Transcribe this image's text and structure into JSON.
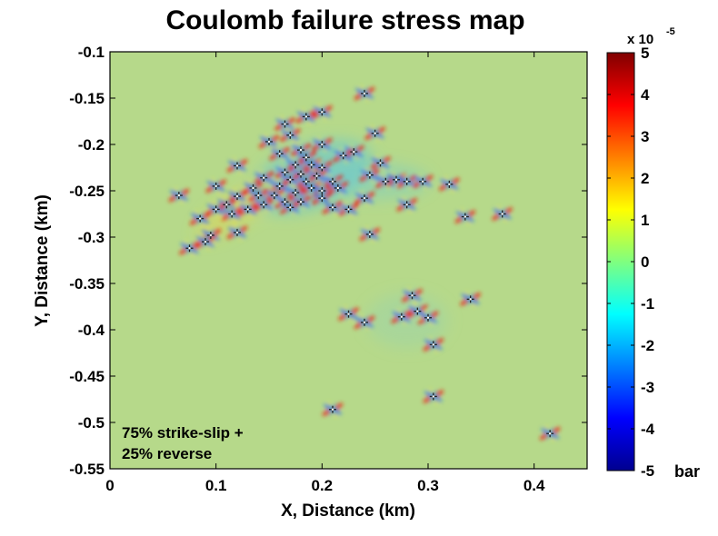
{
  "chart_data": {
    "type": "heatmap",
    "title": "Coulomb failure stress map",
    "xlabel": "X, Distance (km)",
    "ylabel": "Y, Distance (km)",
    "xlim": [
      0,
      0.45
    ],
    "ylim": [
      -0.55,
      -0.1
    ],
    "x_ticks": [
      "0",
      "0.1",
      "0.2",
      "0.3",
      "0.4"
    ],
    "x_tick_values": [
      0,
      0.1,
      0.2,
      0.3,
      0.4
    ],
    "y_ticks": [
      "-0.1",
      "-0.15",
      "-0.2",
      "-0.25",
      "-0.3",
      "-0.35",
      "-0.4",
      "-0.45",
      "-0.5",
      "-0.55"
    ],
    "y_tick_values": [
      -0.1,
      -0.15,
      -0.2,
      -0.25,
      -0.3,
      -0.35,
      -0.4,
      -0.45,
      -0.5,
      -0.55
    ],
    "colorbar": {
      "min": -5,
      "max": 5,
      "ticks": [
        "5",
        "4",
        "3",
        "2",
        "1",
        "0",
        "-1",
        "-2",
        "-3",
        "-4",
        "-5"
      ],
      "tick_values": [
        5,
        4,
        3,
        2,
        1,
        0,
        -1,
        -2,
        -3,
        -4,
        -5
      ],
      "scale_label": "x 10",
      "scale_exponent": "-5",
      "unit": "bar",
      "colormap": "jet"
    },
    "annotation": [
      "75% strike-slip +",
      "25% reverse"
    ],
    "background_color": "#b6d98a",
    "events": [
      [
        0.24,
        -0.145
      ],
      [
        0.2,
        -0.165
      ],
      [
        0.185,
        -0.17
      ],
      [
        0.165,
        -0.178
      ],
      [
        0.25,
        -0.188
      ],
      [
        0.17,
        -0.19
      ],
      [
        0.15,
        -0.197
      ],
      [
        0.2,
        -0.2
      ],
      [
        0.18,
        -0.206
      ],
      [
        0.23,
        -0.208
      ],
      [
        0.16,
        -0.21
      ],
      [
        0.22,
        -0.212
      ],
      [
        0.185,
        -0.214
      ],
      [
        0.175,
        -0.222
      ],
      [
        0.19,
        -0.222
      ],
      [
        0.12,
        -0.223
      ],
      [
        0.2,
        -0.225
      ],
      [
        0.165,
        -0.23
      ],
      [
        0.18,
        -0.232
      ],
      [
        0.195,
        -0.234
      ],
      [
        0.245,
        -0.233
      ],
      [
        0.255,
        -0.22
      ],
      [
        0.145,
        -0.236
      ],
      [
        0.17,
        -0.238
      ],
      [
        0.185,
        -0.24
      ],
      [
        0.21,
        -0.24
      ],
      [
        0.26,
        -0.24
      ],
      [
        0.27,
        -0.238
      ],
      [
        0.28,
        -0.24
      ],
      [
        0.295,
        -0.24
      ],
      [
        0.32,
        -0.243
      ],
      [
        0.1,
        -0.245
      ],
      [
        0.135,
        -0.247
      ],
      [
        0.16,
        -0.245
      ],
      [
        0.19,
        -0.247
      ],
      [
        0.2,
        -0.25
      ],
      [
        0.215,
        -0.247
      ],
      [
        0.175,
        -0.252
      ],
      [
        0.155,
        -0.255
      ],
      [
        0.14,
        -0.255
      ],
      [
        0.12,
        -0.256
      ],
      [
        0.065,
        -0.255
      ],
      [
        0.18,
        -0.262
      ],
      [
        0.165,
        -0.262
      ],
      [
        0.2,
        -0.258
      ],
      [
        0.24,
        -0.258
      ],
      [
        0.11,
        -0.265
      ],
      [
        0.145,
        -0.265
      ],
      [
        0.17,
        -0.268
      ],
      [
        0.28,
        -0.265
      ],
      [
        0.1,
        -0.27
      ],
      [
        0.13,
        -0.27
      ],
      [
        0.225,
        -0.27
      ],
      [
        0.21,
        -0.268
      ],
      [
        0.115,
        -0.275
      ],
      [
        0.085,
        -0.28
      ],
      [
        0.335,
        -0.278
      ],
      [
        0.37,
        -0.275
      ],
      [
        0.12,
        -0.295
      ],
      [
        0.095,
        -0.298
      ],
      [
        0.245,
        -0.297
      ],
      [
        0.09,
        -0.305
      ],
      [
        0.075,
        -0.312
      ],
      [
        0.285,
        -0.363
      ],
      [
        0.34,
        -0.367
      ],
      [
        0.29,
        -0.38
      ],
      [
        0.275,
        -0.386
      ],
      [
        0.225,
        -0.383
      ],
      [
        0.3,
        -0.387
      ],
      [
        0.24,
        -0.392
      ],
      [
        0.305,
        -0.416
      ],
      [
        0.305,
        -0.472
      ],
      [
        0.21,
        -0.486
      ],
      [
        0.415,
        -0.512
      ]
    ]
  }
}
